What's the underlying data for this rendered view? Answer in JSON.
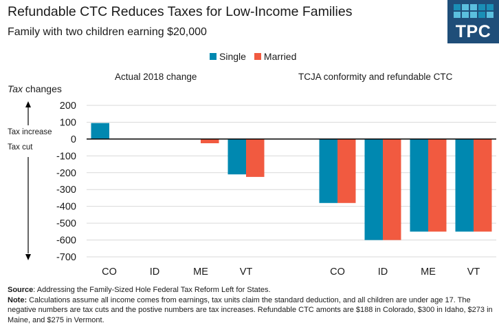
{
  "header": {
    "title": "Refundable CTC Reduces Taxes for Low-Income Families",
    "subtitle": "Family with two children earning $20,000"
  },
  "logo": {
    "text": "TPC",
    "background": "#1f4e79",
    "tile_colors": [
      "#1a8fb6",
      "#5bbfde",
      "#5bbfde",
      "#1a8fb6",
      "#1a8fb6",
      "#5bbfde",
      "#5bbfde",
      "#5bbfde",
      "#1a8fb6",
      "#5bbfde"
    ]
  },
  "axis_annotations": {
    "ytitle_italic": "Tax",
    "ytitle_rest": " changes",
    "increase_label": "Tax increase",
    "cut_label": "Tax cut"
  },
  "footer": {
    "source_label": "Source",
    "source_text": ": Addressing the Family-Sized Hole Federal Tax Reform Left for States.",
    "note_label": "Note:",
    "note_text": " Calculations assume all income  comes from earnings, tax units claim the standard deduction, and all children are under age 17. The negative numbers are tax cuts and the postive numbers are tax increases. Refundable  CTC amonts are  $188 in Colorado, $300  in Idaho, $273  in Maine, and $275 in Vermont."
  },
  "chart_data": {
    "type": "bar",
    "title": "Refundable CTC Reduces Taxes for Low-Income Families",
    "subtitle": "Family with two children earning $20,000",
    "ylabel": "Tax changes",
    "xlabel": "",
    "ylim": [
      -700,
      200
    ],
    "yticks": [
      200,
      100,
      0,
      -100,
      -200,
      -300,
      -400,
      -500,
      -600,
      -700
    ],
    "grid": true,
    "legend_position": "top-center",
    "series_meta": [
      {
        "name": "Single",
        "color": "#0088b0"
      },
      {
        "name": "Married",
        "color": "#f15a40"
      }
    ],
    "panels": [
      {
        "title": "Actual 2018 change",
        "categories": [
          "CO",
          "ID",
          "ME",
          "VT"
        ],
        "series": [
          {
            "name": "Single",
            "values": [
              95,
              0,
              0,
              -210
            ]
          },
          {
            "name": "Married",
            "values": [
              0,
              0,
              -25,
              -225
            ]
          }
        ]
      },
      {
        "title": "TCJA conformity and refundable CTC",
        "categories": [
          "CO",
          "ID",
          "ME",
          "VT"
        ],
        "series": [
          {
            "name": "Single",
            "values": [
              -380,
              -600,
              -550,
              -550
            ]
          },
          {
            "name": "Married",
            "values": [
              -380,
              -600,
              -550,
              -550
            ]
          }
        ]
      }
    ]
  }
}
